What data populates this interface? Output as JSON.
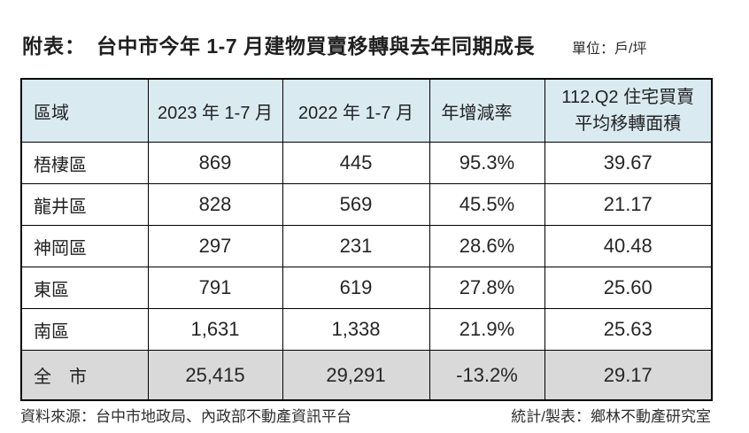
{
  "header": {
    "prefix": "附表：",
    "title": "台中市今年 1-7 月建物買賣移轉與去年同期成長",
    "unit": "單位：戶/坪"
  },
  "table": {
    "columns": [
      {
        "label": "區域"
      },
      {
        "label": "2023 年 1-7 月"
      },
      {
        "label": "2022 年 1-7 月"
      },
      {
        "label": "年增減率"
      },
      {
        "line1": "112.Q2 住宅買賣",
        "line2": "平均移轉面積"
      }
    ],
    "rows": [
      {
        "region": "梧棲區",
        "y2023": "869",
        "y2022": "445",
        "yoy": "95.3%",
        "area": "39.67"
      },
      {
        "region": "龍井區",
        "y2023": "828",
        "y2022": "569",
        "yoy": "45.5%",
        "area": "21.17"
      },
      {
        "region": "神岡區",
        "y2023": "297",
        "y2022": "231",
        "yoy": "28.6%",
        "area": "40.48"
      },
      {
        "region": "東區",
        "y2023": "791",
        "y2022": "619",
        "yoy": "27.8%",
        "area": "25.60"
      },
      {
        "region": "南區",
        "y2023": "1,631",
        "y2022": "1,338",
        "yoy": "21.9%",
        "area": "25.63"
      }
    ],
    "total": {
      "region": "全　市",
      "y2023": "25,415",
      "y2022": "29,291",
      "yoy": "-13.2%",
      "area": "29.17"
    }
  },
  "footer": {
    "source": "資料來源：台中市地政局、內政部不動產資訊平台",
    "credit": "統計/製表：鄉林不動產研究室"
  },
  "colors": {
    "header_bg": "#d9eaf1",
    "total_row_bg": "#d9d9d9",
    "border": "#000000",
    "text": "#1f1f1f"
  },
  "chart_data": {
    "type": "table",
    "title": "台中市今年 1-7 月建物買賣移轉與去年同期成長",
    "unit": "戶/坪",
    "columns": [
      "區域",
      "2023 年 1-7 月",
      "2022 年 1-7 月",
      "年增減率",
      "112.Q2 住宅買賣平均移轉面積"
    ],
    "rows": [
      [
        "梧棲區",
        869,
        445,
        "95.3%",
        39.67
      ],
      [
        "龍井區",
        828,
        569,
        "45.5%",
        21.17
      ],
      [
        "神岡區",
        297,
        231,
        "28.6%",
        40.48
      ],
      [
        "東區",
        791,
        619,
        "27.8%",
        25.6
      ],
      [
        "南區",
        1631,
        1338,
        "21.9%",
        25.63
      ],
      [
        "全市",
        25415,
        29291,
        "-13.2%",
        29.17
      ]
    ]
  }
}
